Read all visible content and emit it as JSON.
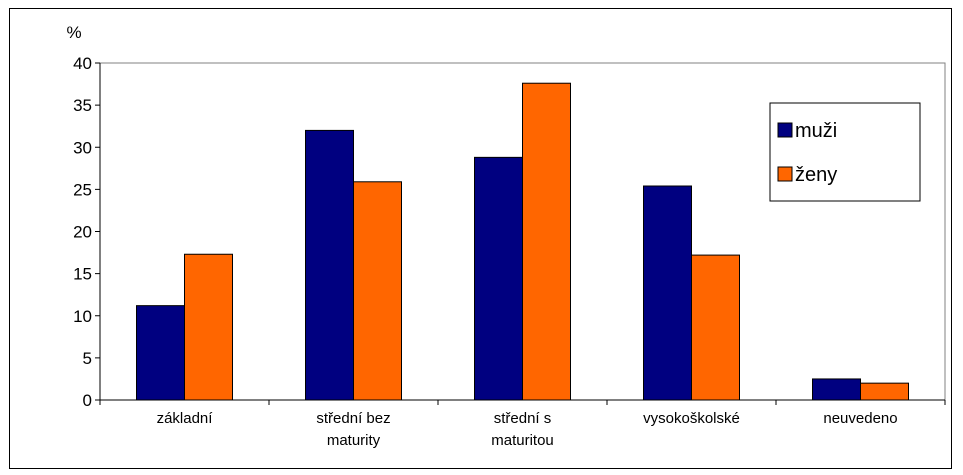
{
  "chart_data": {
    "type": "bar",
    "title": "",
    "ylabel": "%",
    "xlabel": "",
    "ylim": [
      0,
      40
    ],
    "yticks": [
      0,
      5,
      10,
      15,
      20,
      25,
      30,
      35,
      40
    ],
    "categories": [
      [
        "základní"
      ],
      [
        "střední bez",
        "maturity"
      ],
      [
        "střední s",
        "maturitou"
      ],
      [
        "vysokoškolské"
      ],
      [
        "neuvedeno"
      ]
    ],
    "series": [
      {
        "name": "muži",
        "color": "#000080",
        "values": [
          11.2,
          32.0,
          28.8,
          25.4,
          2.5
        ]
      },
      {
        "name": "ženy",
        "color": "#FF6600",
        "values": [
          17.3,
          25.9,
          37.6,
          17.2,
          2.0
        ]
      }
    ],
    "legend_position": "right",
    "plot_background": "#ffffff",
    "border_color": "#000000",
    "gridlines": false
  }
}
